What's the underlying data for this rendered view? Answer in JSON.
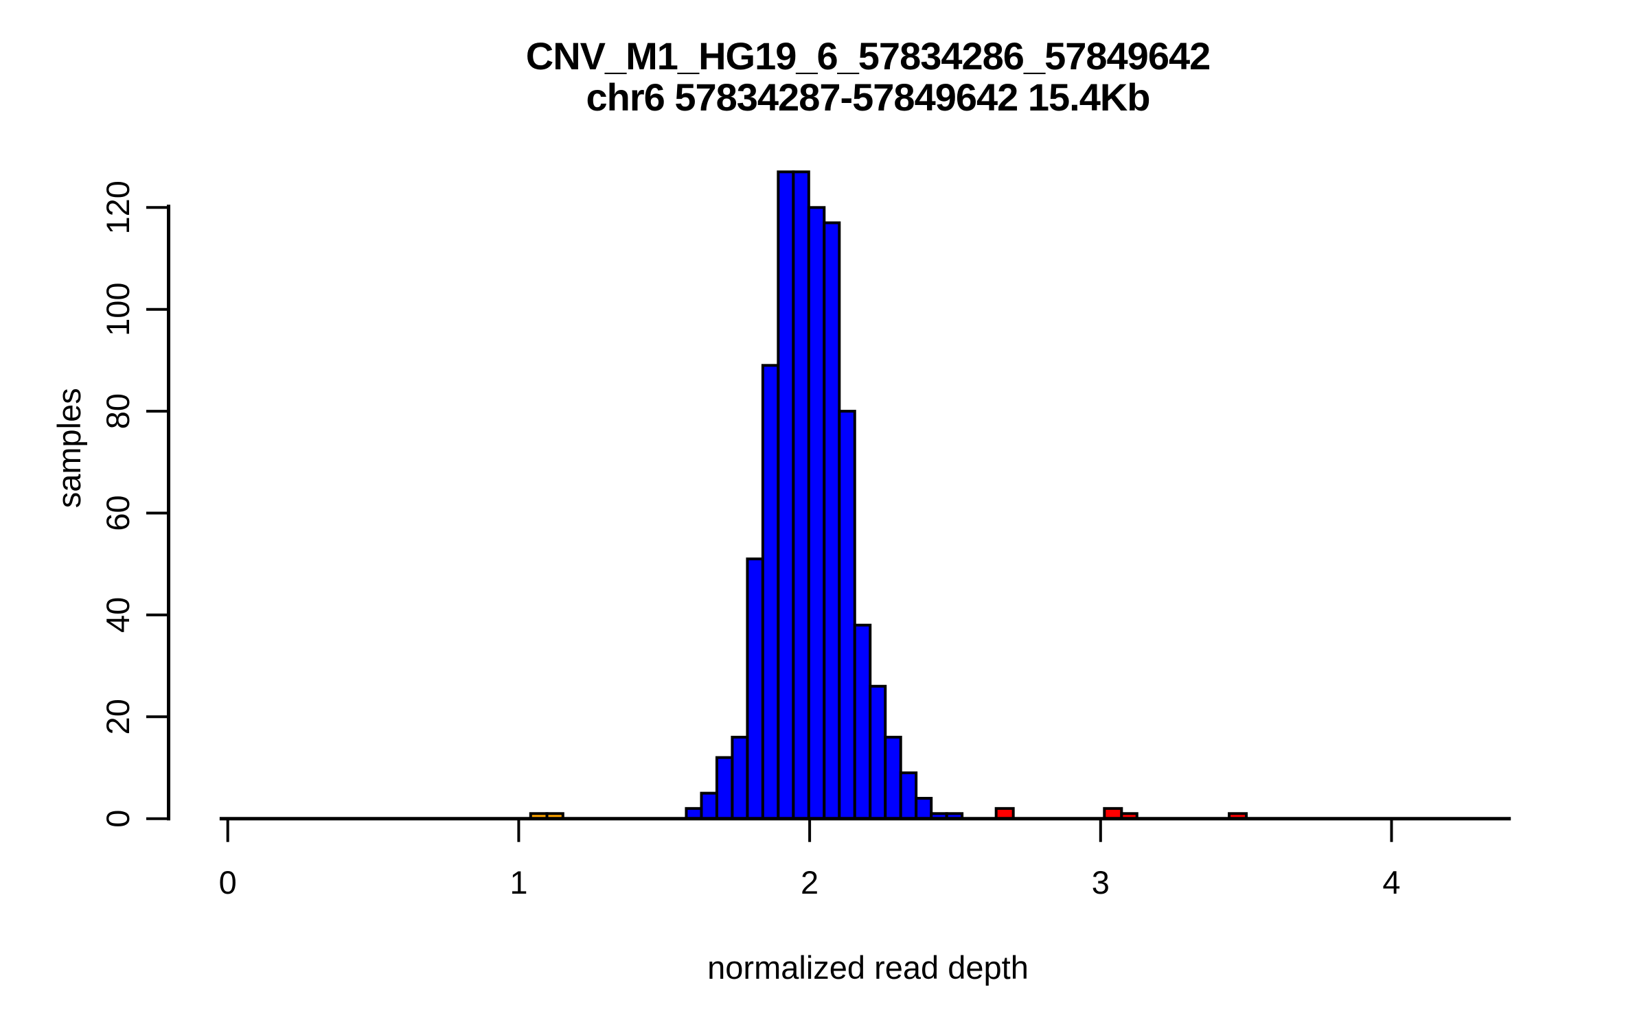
{
  "figure": {
    "background": "#ffffff"
  },
  "chart_data": {
    "type": "bar",
    "subtype": "histogram",
    "title": "CNV_M1_HG19_6_57834286_57849642",
    "subtitle": "chr6 57834287-57849642 15.4Kb",
    "xlabel": "normalized read depth",
    "ylabel": "samples",
    "xlim": [
      -0.028,
      4.41
    ],
    "ylim": [
      0,
      127
    ],
    "grid": false,
    "legend": "none",
    "x_ticks": [
      0,
      1,
      2,
      3,
      4
    ],
    "x_tick_labels": [
      "0",
      "1",
      "2",
      "3",
      "4"
    ],
    "y_ticks": [
      0,
      20,
      40,
      60,
      80,
      100,
      120
    ],
    "y_tick_labels": [
      "0",
      "20",
      "40",
      "60",
      "80",
      "100",
      "120"
    ],
    "colors": {
      "diploid_blue": "#0000ff",
      "deletion_orange": "#ffa500",
      "duplication_red": "#ff0000",
      "bar_border": "#000000",
      "axis": "#000000"
    },
    "bars": [
      {
        "x0": 1.041,
        "x1": 1.097,
        "count": 1,
        "color": "deletion_orange"
      },
      {
        "x0": 1.097,
        "x1": 1.152,
        "count": 1,
        "color": "deletion_orange"
      },
      {
        "x0": 1.576,
        "x1": 1.628,
        "count": 2,
        "color": "diploid_blue"
      },
      {
        "x0": 1.628,
        "x1": 1.681,
        "count": 5,
        "color": "diploid_blue"
      },
      {
        "x0": 1.681,
        "x1": 1.734,
        "count": 12,
        "color": "diploid_blue"
      },
      {
        "x0": 1.734,
        "x1": 1.786,
        "count": 16,
        "color": "diploid_blue"
      },
      {
        "x0": 1.786,
        "x1": 1.839,
        "count": 51,
        "color": "diploid_blue"
      },
      {
        "x0": 1.839,
        "x1": 1.892,
        "count": 89,
        "color": "diploid_blue"
      },
      {
        "x0": 1.892,
        "x1": 1.944,
        "count": 127,
        "color": "diploid_blue"
      },
      {
        "x0": 1.944,
        "x1": 1.997,
        "count": 127,
        "color": "diploid_blue"
      },
      {
        "x0": 1.997,
        "x1": 2.05,
        "count": 120,
        "color": "diploid_blue"
      },
      {
        "x0": 2.05,
        "x1": 2.102,
        "count": 117,
        "color": "diploid_blue"
      },
      {
        "x0": 2.102,
        "x1": 2.155,
        "count": 80,
        "color": "diploid_blue"
      },
      {
        "x0": 2.155,
        "x1": 2.208,
        "count": 38,
        "color": "diploid_blue"
      },
      {
        "x0": 2.208,
        "x1": 2.26,
        "count": 26,
        "color": "diploid_blue"
      },
      {
        "x0": 2.26,
        "x1": 2.313,
        "count": 16,
        "color": "diploid_blue"
      },
      {
        "x0": 2.313,
        "x1": 2.366,
        "count": 9,
        "color": "diploid_blue"
      },
      {
        "x0": 2.366,
        "x1": 2.418,
        "count": 4,
        "color": "diploid_blue"
      },
      {
        "x0": 2.418,
        "x1": 2.471,
        "count": 1,
        "color": "diploid_blue"
      },
      {
        "x0": 2.471,
        "x1": 2.524,
        "count": 1,
        "color": "diploid_blue"
      },
      {
        "x0": 2.641,
        "x1": 2.7,
        "count": 2,
        "color": "duplication_red"
      },
      {
        "x0": 3.013,
        "x1": 3.072,
        "count": 2,
        "color": "duplication_red"
      },
      {
        "x0": 3.072,
        "x1": 3.125,
        "count": 1,
        "color": "duplication_red"
      },
      {
        "x0": 3.442,
        "x1": 3.501,
        "count": 1,
        "color": "duplication_red"
      }
    ]
  }
}
